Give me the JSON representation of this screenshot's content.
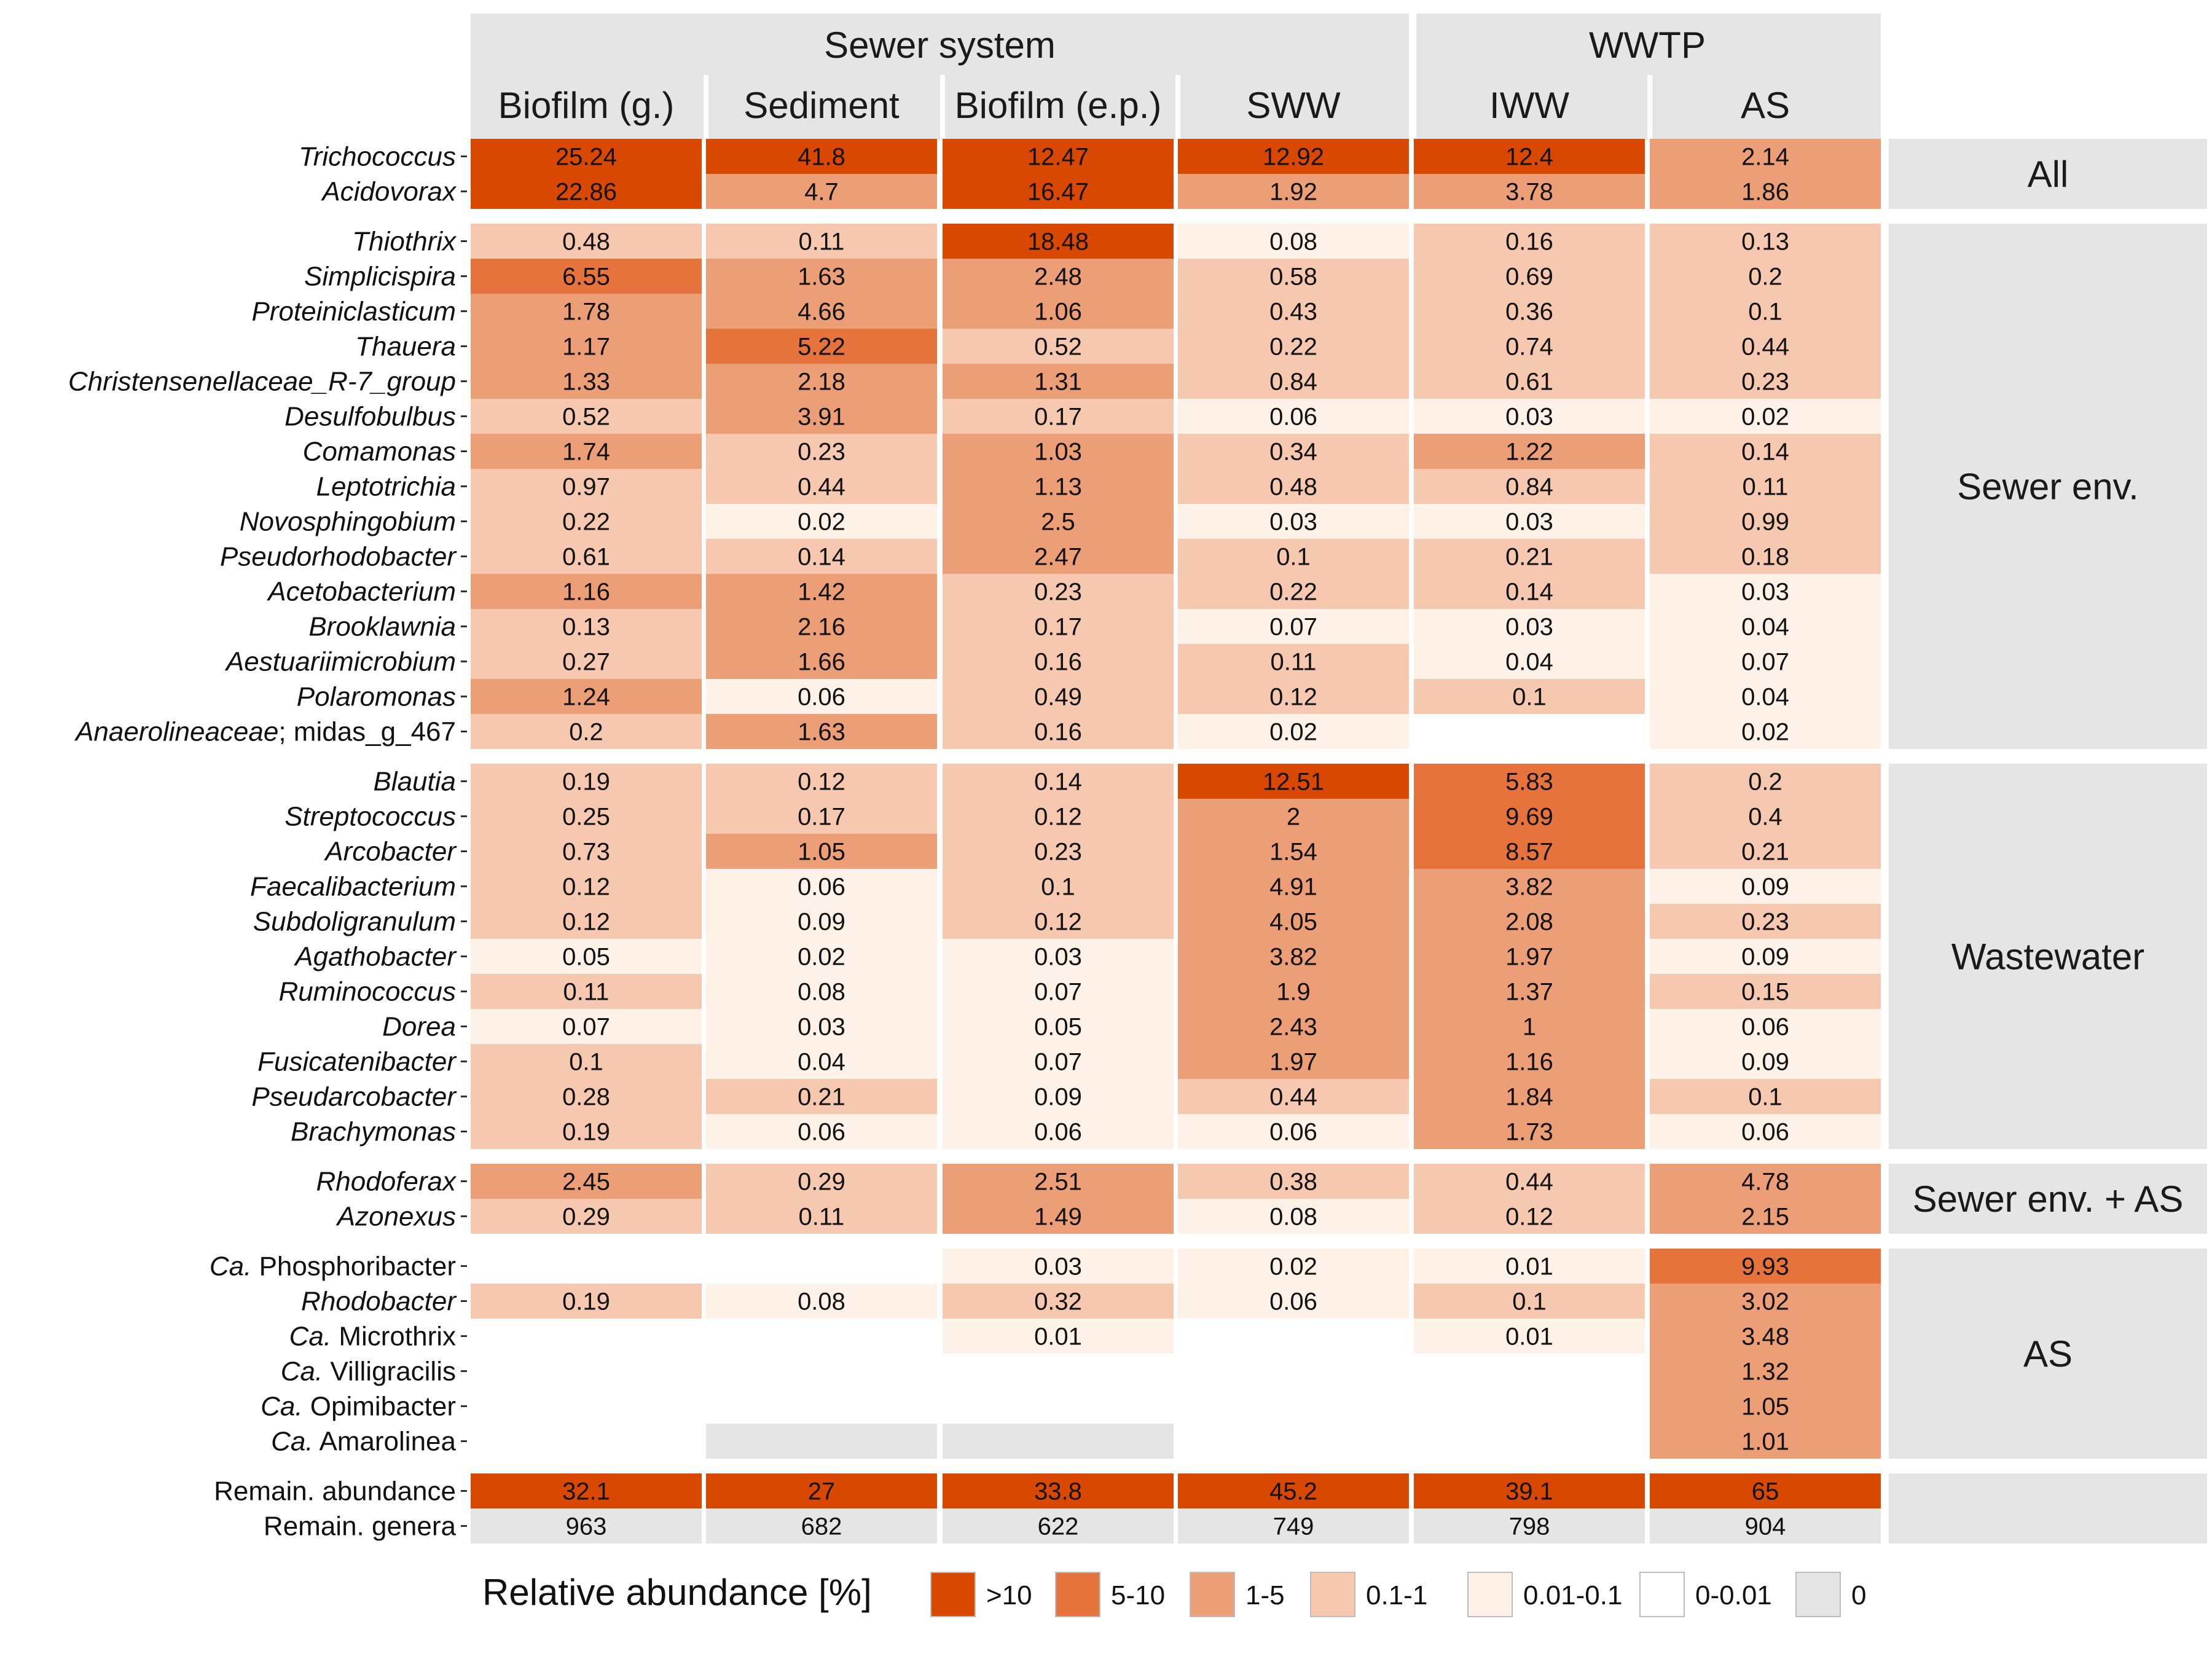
{
  "chart_data": {
    "type": "heatmap",
    "column_groups": [
      {
        "label": "Sewer system",
        "columns": [
          "Biofilm (g.)",
          "Sediment",
          "Biofilm (e.p.)",
          "SWW"
        ]
      },
      {
        "label": "WWTP",
        "columns": [
          "IWW",
          "AS"
        ]
      }
    ],
    "columns": [
      "Biofilm (g.)",
      "Sediment",
      "Biofilm (e.p.)",
      "SWW",
      "IWW",
      "AS"
    ],
    "row_groups": [
      {
        "label": "All",
        "rows": [
          {
            "name": "Trichococcus",
            "italic": true,
            "values": [
              "25.24",
              "41.8",
              "12.47",
              "12.92",
              "12.4",
              "2.14"
            ]
          },
          {
            "name": "Acidovorax",
            "italic": true,
            "values": [
              "22.86",
              "4.7",
              "16.47",
              "1.92",
              "3.78",
              "1.86"
            ]
          }
        ]
      },
      {
        "label": "Sewer env.",
        "rows": [
          {
            "name": "Thiothrix",
            "italic": true,
            "values": [
              "0.48",
              "0.11",
              "18.48",
              "0.08",
              "0.16",
              "0.13"
            ]
          },
          {
            "name": "Simplicispira",
            "italic": true,
            "values": [
              "6.55",
              "1.63",
              "2.48",
              "0.58",
              "0.69",
              "0.2"
            ]
          },
          {
            "name": "Proteiniclasticum",
            "italic": true,
            "values": [
              "1.78",
              "4.66",
              "1.06",
              "0.43",
              "0.36",
              "0.1"
            ]
          },
          {
            "name": "Thauera",
            "italic": true,
            "values": [
              "1.17",
              "5.22",
              "0.52",
              "0.22",
              "0.74",
              "0.44"
            ]
          },
          {
            "name": "Christensenellaceae_R-7_group",
            "italic": true,
            "values": [
              "1.33",
              "2.18",
              "1.31",
              "0.84",
              "0.61",
              "0.23"
            ]
          },
          {
            "name": "Desulfobulbus",
            "italic": true,
            "values": [
              "0.52",
              "3.91",
              "0.17",
              "0.06",
              "0.03",
              "0.02"
            ]
          },
          {
            "name": "Comamonas",
            "italic": true,
            "values": [
              "1.74",
              "0.23",
              "1.03",
              "0.34",
              "1.22",
              "0.14"
            ]
          },
          {
            "name": "Leptotrichia",
            "italic": true,
            "values": [
              "0.97",
              "0.44",
              "1.13",
              "0.48",
              "0.84",
              "0.11"
            ]
          },
          {
            "name": "Novosphingobium",
            "italic": true,
            "values": [
              "0.22",
              "0.02",
              "2.5",
              "0.03",
              "0.03",
              "0.99"
            ]
          },
          {
            "name": "Pseudorhodobacter",
            "italic": true,
            "values": [
              "0.61",
              "0.14",
              "2.47",
              "0.1",
              "0.21",
              "0.18"
            ]
          },
          {
            "name": "Acetobacterium",
            "italic": true,
            "values": [
              "1.16",
              "1.42",
              "0.23",
              "0.22",
              "0.14",
              "0.03"
            ]
          },
          {
            "name": "Brooklawnia",
            "italic": true,
            "values": [
              "0.13",
              "2.16",
              "0.17",
              "0.07",
              "0.03",
              "0.04"
            ]
          },
          {
            "name": "Aestuariimicrobium",
            "italic": true,
            "values": [
              "0.27",
              "1.66",
              "0.16",
              "0.11",
              "0.04",
              "0.07"
            ]
          },
          {
            "name": "Polaromonas",
            "italic": true,
            "values": [
              "1.24",
              "0.06",
              "0.49",
              "0.12",
              "0.1",
              "0.04"
            ]
          },
          {
            "name": "Anaerolineaceae; midas_g_467",
            "italic": false,
            "italic_prefix": "Anaerolineaceae",
            "plain_suffix": "; midas_g_467",
            "values": [
              "0.2",
              "1.63",
              "0.16",
              "0.02",
              "",
              "0.02"
            ],
            "cats": [
              null,
              null,
              null,
              null,
              "0-0.01",
              null
            ]
          }
        ]
      },
      {
        "label": "Wastewater",
        "rows": [
          {
            "name": "Blautia",
            "italic": true,
            "values": [
              "0.19",
              "0.12",
              "0.14",
              "12.51",
              "5.83",
              "0.2"
            ]
          },
          {
            "name": "Streptococcus",
            "italic": true,
            "values": [
              "0.25",
              "0.17",
              "0.12",
              "2",
              "9.69",
              "0.4"
            ]
          },
          {
            "name": "Arcobacter",
            "italic": true,
            "values": [
              "0.73",
              "1.05",
              "0.23",
              "1.54",
              "8.57",
              "0.21"
            ]
          },
          {
            "name": "Faecalibacterium",
            "italic": true,
            "values": [
              "0.12",
              "0.06",
              "0.1",
              "4.91",
              "3.82",
              "0.09"
            ]
          },
          {
            "name": "Subdoligranulum",
            "italic": true,
            "values": [
              "0.12",
              "0.09",
              "0.12",
              "4.05",
              "2.08",
              "0.23"
            ]
          },
          {
            "name": "Agathobacter",
            "italic": true,
            "values": [
              "0.05",
              "0.02",
              "0.03",
              "3.82",
              "1.97",
              "0.09"
            ]
          },
          {
            "name": "Ruminococcus",
            "italic": true,
            "values": [
              "0.11",
              "0.08",
              "0.07",
              "1.9",
              "1.37",
              "0.15"
            ]
          },
          {
            "name": "Dorea",
            "italic": true,
            "values": [
              "0.07",
              "0.03",
              "0.05",
              "2.43",
              "1",
              "0.06"
            ]
          },
          {
            "name": "Fusicatenibacter",
            "italic": true,
            "values": [
              "0.1",
              "0.04",
              "0.07",
              "1.97",
              "1.16",
              "0.09"
            ]
          },
          {
            "name": "Pseudarcobacter",
            "italic": true,
            "values": [
              "0.28",
              "0.21",
              "0.09",
              "0.44",
              "1.84",
              "0.1"
            ]
          },
          {
            "name": "Brachymonas",
            "italic": true,
            "values": [
              "0.19",
              "0.06",
              "0.06",
              "0.06",
              "1.73",
              "0.06"
            ]
          }
        ]
      },
      {
        "label": "Sewer env. + AS",
        "rows": [
          {
            "name": "Rhodoferax",
            "italic": true,
            "values": [
              "2.45",
              "0.29",
              "2.51",
              "0.38",
              "0.44",
              "4.78"
            ]
          },
          {
            "name": "Azonexus",
            "italic": true,
            "values": [
              "0.29",
              "0.11",
              "1.49",
              "0.08",
              "0.12",
              "2.15"
            ]
          }
        ]
      },
      {
        "label": "AS",
        "rows": [
          {
            "name": "Ca. Phosphoribacter",
            "ca": true,
            "genus": "Phosphoribacter",
            "values": [
              "",
              "",
              "0.03",
              "0.02",
              "0.01",
              "9.93"
            ],
            "cats": [
              "0-0.01",
              "0-0.01",
              null,
              null,
              null,
              null
            ]
          },
          {
            "name": "Rhodobacter",
            "italic": true,
            "values": [
              "0.19",
              "0.08",
              "0.32",
              "0.06",
              "0.1",
              "3.02"
            ]
          },
          {
            "name": "Ca. Microthrix",
            "ca": true,
            "genus": "Microthrix",
            "values": [
              "",
              "",
              "0.01",
              "",
              "0.01",
              "3.48"
            ],
            "cats": [
              "0-0.01",
              "0-0.01",
              null,
              "0-0.01",
              null,
              null
            ]
          },
          {
            "name": "Ca. Villigracilis",
            "ca": true,
            "genus": "Villigracilis",
            "values": [
              "",
              "",
              "",
              "",
              "",
              "1.32"
            ],
            "cats": [
              "0-0.01",
              "0-0.01",
              "0-0.01",
              "0-0.01",
              "0-0.01",
              null
            ]
          },
          {
            "name": "Ca. Opimibacter",
            "ca": true,
            "genus": "Opimibacter",
            "values": [
              "",
              "",
              "",
              "",
              "",
              "1.05"
            ],
            "cats": [
              "0-0.01",
              "0-0.01",
              "0-0.01",
              "0-0.01",
              "0-0.01",
              null
            ]
          },
          {
            "name": "Ca. Amarolinea",
            "ca": true,
            "genus": "Amarolinea",
            "values": [
              "",
              "",
              "",
              "",
              "",
              "1.01"
            ],
            "cats": [
              "0-0.01",
              "0",
              "0",
              "0-0.01",
              "0-0.01",
              null
            ]
          }
        ]
      },
      {
        "label": "",
        "rows": [
          {
            "name": "Remain. abundance",
            "italic": false,
            "values": [
              "32.1",
              "27",
              "33.8",
              "45.2",
              "39.1",
              "65"
            ]
          },
          {
            "name": "Remain. genera",
            "italic": false,
            "values": [
              "963",
              "682",
              "622",
              "749",
              "798",
              "904"
            ],
            "cats": [
              "0",
              "0",
              "0",
              "0",
              "0",
              "0"
            ]
          }
        ]
      }
    ],
    "legend": {
      "title": "Relative abundance [%]",
      "items": [
        {
          "label": ">10",
          "color": "#d94801"
        },
        {
          "label": "5-10",
          "color": "#e6723c"
        },
        {
          "label": "1-5",
          "color": "#ec9f76"
        },
        {
          "label": "0.1-1",
          "color": "#f6c8af"
        },
        {
          "label": "0.01-0.1",
          "color": "#fef2e8"
        },
        {
          "label": "0-0.01",
          "color": "#ffffff"
        },
        {
          "label": "0",
          "color": "#e5e5e5"
        }
      ]
    }
  }
}
